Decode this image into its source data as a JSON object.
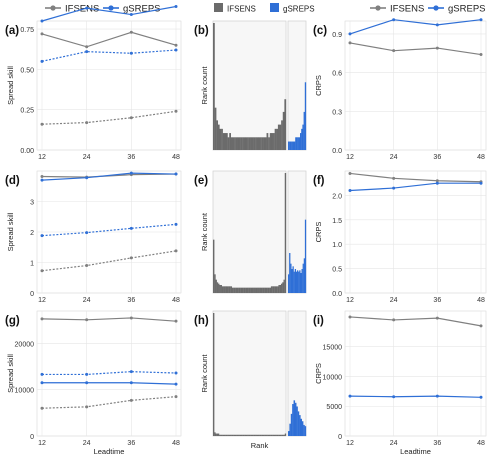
{
  "legends": {
    "line": [
      {
        "name": "IFSENS",
        "color": "#808080"
      },
      {
        "name": "gSREPS",
        "color": "#2f6fd6"
      }
    ],
    "hist": [
      {
        "name": "IFSENS",
        "color": "#6b6b6b"
      },
      {
        "name": "gSREPS",
        "color": "#2f6fd6"
      }
    ]
  },
  "chart_data": [
    {
      "panel": "(a)",
      "type": "line",
      "ylabel": "Spread skill",
      "xlabel": "",
      "x": [
        12,
        24,
        36,
        48
      ],
      "ylim": [
        0,
        0.8
      ],
      "yticks": [
        "0.00",
        "0.25",
        "0.50",
        "0.75"
      ],
      "grid": true,
      "series": [
        {
          "name": "IFSENS",
          "style": "solid",
          "values": [
            0.72,
            0.64,
            0.73,
            0.65
          ]
        },
        {
          "name": "gSREPS",
          "style": "solid",
          "values": [
            0.8,
            0.88,
            0.84,
            0.89
          ]
        },
        {
          "name": "gSREPS",
          "style": "dotted",
          "values": [
            0.55,
            0.61,
            0.6,
            0.62
          ]
        },
        {
          "name": "IFSENS",
          "style": "dotted",
          "values": [
            0.16,
            0.17,
            0.2,
            0.24
          ]
        }
      ]
    },
    {
      "panel": "(b)",
      "type": "histogram",
      "ylabel": "Rank count",
      "xlabel": "",
      "series": [
        {
          "name": "IFSENS",
          "values": [
            30,
            10,
            7,
            6,
            5,
            5,
            4,
            4,
            4,
            3,
            4,
            3,
            3,
            3,
            3,
            3,
            3,
            3,
            3,
            3,
            3,
            3,
            3,
            3,
            3,
            3,
            3,
            3,
            3,
            3,
            3,
            3,
            3,
            4,
            3,
            4,
            4,
            4,
            5,
            5,
            6,
            6,
            7,
            9,
            12
          ]
        },
        {
          "name": "gSREPS",
          "values": [
            2,
            2,
            2,
            2,
            2,
            2,
            3,
            3,
            3,
            3,
            4,
            5,
            6,
            9,
            16
          ]
        }
      ]
    },
    {
      "panel": "(c)",
      "type": "line",
      "ylabel": "CRPS",
      "xlabel": "",
      "x": [
        12,
        24,
        36,
        48
      ],
      "ylim": [
        0,
        1.0
      ],
      "yticks": [
        "0.0",
        "0.3",
        "0.6",
        "0.9"
      ],
      "grid": true,
      "series": [
        {
          "name": "IFSENS",
          "style": "solid",
          "values": [
            0.83,
            0.77,
            0.79,
            0.74
          ]
        },
        {
          "name": "gSREPS",
          "style": "solid",
          "values": [
            0.9,
            1.01,
            0.97,
            1.01
          ]
        }
      ]
    },
    {
      "panel": "(d)",
      "type": "line",
      "ylabel": "Spread skill",
      "xlabel": "",
      "x": [
        12,
        24,
        36,
        48
      ],
      "ylim": [
        0,
        4
      ],
      "yticks": [
        "0",
        "1",
        "2",
        "3"
      ],
      "grid": true,
      "series": [
        {
          "name": "IFSENS",
          "style": "solid",
          "values": [
            3.82,
            3.8,
            3.88,
            3.9
          ]
        },
        {
          "name": "gSREPS",
          "style": "solid",
          "values": [
            3.7,
            3.78,
            3.93,
            3.9
          ]
        },
        {
          "name": "gSREPS",
          "style": "dotted",
          "values": [
            1.88,
            1.98,
            2.12,
            2.25
          ]
        },
        {
          "name": "IFSENS",
          "style": "dotted",
          "values": [
            0.73,
            0.9,
            1.15,
            1.38
          ]
        }
      ]
    },
    {
      "panel": "(e)",
      "type": "histogram",
      "ylabel": "Rank count",
      "xlabel": "",
      "series": [
        {
          "name": "IFSENS",
          "values": [
            40,
            14,
            10,
            8,
            7,
            6,
            6,
            5,
            5,
            5,
            5,
            5,
            5,
            5,
            5,
            4,
            4,
            4,
            4,
            4,
            4,
            4,
            4,
            4,
            4,
            4,
            4,
            4,
            4,
            4,
            4,
            4,
            4,
            4,
            4,
            4,
            4,
            4,
            4,
            4,
            4,
            4,
            4,
            4,
            4,
            4,
            5,
            5,
            5,
            5,
            5,
            5,
            6,
            6,
            7,
            8,
            10,
            90
          ]
        },
        {
          "name": "gSREPS",
          "values": [
            14,
            30,
            22,
            18,
            20,
            16,
            18,
            16,
            17,
            16,
            17,
            15,
            18,
            22,
            26,
            55
          ]
        }
      ]
    },
    {
      "panel": "(f)",
      "type": "line",
      "ylabel": "CRPS",
      "xlabel": "",
      "x": [
        12,
        24,
        36,
        48
      ],
      "ylim": [
        0,
        2.5
      ],
      "yticks": [
        "0.0",
        "0.5",
        "1.0",
        "1.5",
        "2.0"
      ],
      "grid": true,
      "series": [
        {
          "name": "IFSENS",
          "style": "solid",
          "values": [
            2.45,
            2.35,
            2.3,
            2.28
          ]
        },
        {
          "name": "gSREPS",
          "style": "solid",
          "values": [
            2.1,
            2.15,
            2.25,
            2.25
          ]
        }
      ]
    },
    {
      "panel": "(g)",
      "type": "line",
      "ylabel": "Spread skill",
      "xlabel": "Leadtime",
      "x": [
        12,
        24,
        36,
        48
      ],
      "ylim": [
        0,
        27000
      ],
      "yticks": [
        "0",
        "10000",
        "20000"
      ],
      "grid": true,
      "series": [
        {
          "name": "IFSENS",
          "style": "solid",
          "values": [
            25300,
            25100,
            25500,
            24800
          ]
        },
        {
          "name": "gSREPS",
          "style": "dotted",
          "values": [
            13300,
            13300,
            13900,
            13600
          ]
        },
        {
          "name": "gSREPS",
          "style": "solid",
          "values": [
            11500,
            11500,
            11500,
            11200
          ]
        },
        {
          "name": "IFSENS",
          "style": "dotted",
          "values": [
            6000,
            6300,
            7700,
            8500
          ]
        }
      ]
    },
    {
      "panel": "(h)",
      "type": "histogram",
      "ylabel": "Rank count",
      "xlabel": "Rank",
      "series": [
        {
          "name": "IFSENS",
          "values": [
            100,
            3,
            2,
            2,
            2,
            1,
            1,
            1,
            1,
            1,
            1,
            1,
            1,
            1,
            1,
            1,
            1,
            1,
            1,
            1,
            1,
            1,
            1,
            1,
            1,
            1,
            1,
            1,
            1,
            1,
            1,
            1,
            1,
            1,
            1,
            1,
            1,
            1,
            1,
            1,
            1,
            1,
            1,
            1,
            1,
            1,
            1,
            1,
            1,
            1,
            1,
            1,
            1,
            1,
            1,
            1,
            1,
            1,
            1,
            2
          ]
        },
        {
          "name": "gSREPS",
          "values": [
            4,
            10,
            18,
            26,
            29,
            27,
            24,
            20,
            17,
            14,
            12,
            9,
            8
          ]
        }
      ]
    },
    {
      "panel": "(i)",
      "type": "line",
      "ylabel": "CRPS",
      "xlabel": "Leadtime",
      "x": [
        12,
        24,
        36,
        48
      ],
      "ylim": [
        0,
        21000
      ],
      "yticks": [
        "0",
        "5000",
        "10000",
        "15000"
      ],
      "grid": true,
      "series": [
        {
          "name": "IFSENS",
          "style": "solid",
          "values": [
            20000,
            19500,
            19800,
            18500
          ]
        },
        {
          "name": "gSREPS",
          "style": "solid",
          "values": [
            6700,
            6600,
            6700,
            6500
          ]
        }
      ]
    }
  ]
}
